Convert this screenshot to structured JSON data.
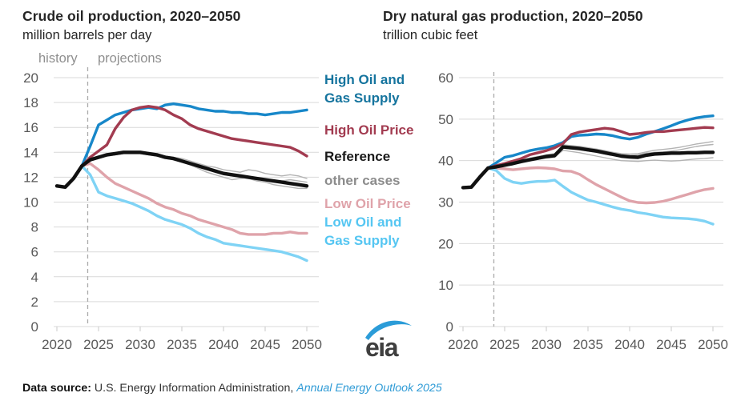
{
  "page": {
    "background": "#ffffff"
  },
  "left_chart": {
    "title": "Crude oil production, 2020–2050",
    "subtitle": "million barrels per day",
    "history_label": "history",
    "projections_label": "projections"
  },
  "right_chart": {
    "title": "Dry natural gas production, 2020–2050",
    "subtitle": "trillion cubic feet"
  },
  "legend": {
    "items": [
      {
        "label": "High Oil and Gas Supply",
        "color": "#15749e"
      },
      {
        "label": "High Oil Price",
        "color": "#a23b50"
      },
      {
        "label": "Reference",
        "color": "#1a1a1a"
      },
      {
        "label": "other cases",
        "color": "#8c8c8c"
      },
      {
        "label": "Low Oil Price",
        "color": "#dfa3aa"
      },
      {
        "label": "Low Oil and Gas Supply",
        "color": "#55c6f2"
      }
    ]
  },
  "logo": {
    "text": "eia",
    "swoosh_color": "#2b9cd8"
  },
  "footer": {
    "prefix": "Data source: ",
    "text": "U.S. Energy Information Administration, ",
    "link": "Annual Energy Outlook 2025"
  },
  "colors": {
    "grid": "#d9d9d9",
    "axis_text": "#595959",
    "divider": "#ababab"
  },
  "chart_data": [
    {
      "type": "line",
      "title": "Crude oil production, 2020–2050",
      "units": "million barrels per day",
      "xlim": [
        2020,
        2050
      ],
      "ylim": [
        0,
        20
      ],
      "xticks": [
        2020,
        2025,
        2030,
        2035,
        2040,
        2045,
        2050
      ],
      "yticks": [
        0,
        2,
        4,
        6,
        8,
        10,
        12,
        14,
        16,
        18,
        20
      ],
      "grid": true,
      "divider_year": 2023.7,
      "annotations": [
        "history",
        "projections"
      ],
      "series": [
        {
          "name": "other cases",
          "color": "#b3b3b3",
          "lw": 1.4,
          "start_year": 2023,
          "values": [
            12.9,
            13.4,
            13.6,
            13.8,
            13.9,
            14.0,
            14.0,
            14.0,
            13.9,
            13.8,
            13.7,
            13.6,
            13.5,
            13.3,
            13.1,
            12.9,
            12.8,
            12.6,
            12.5,
            12.4,
            12.6,
            12.5,
            12.3,
            12.2,
            12.1,
            12.2,
            12.1,
            11.9
          ]
        },
        {
          "name": "other cases",
          "color": "#b3b3b3",
          "lw": 1.4,
          "start_year": 2023,
          "values": [
            12.9,
            13.4,
            13.5,
            13.7,
            13.8,
            13.9,
            13.9,
            13.9,
            13.8,
            13.7,
            13.6,
            13.4,
            13.2,
            13.0,
            12.7,
            12.4,
            12.2,
            12.0,
            11.8,
            11.9,
            12.0,
            11.9,
            11.8,
            11.7,
            11.7,
            11.8,
            11.7,
            11.6
          ]
        },
        {
          "name": "other cases",
          "color": "#b3b3b3",
          "lw": 1.4,
          "start_year": 2023,
          "values": [
            12.9,
            13.3,
            13.5,
            13.7,
            13.8,
            13.9,
            13.9,
            13.9,
            13.8,
            13.7,
            13.5,
            13.4,
            13.2,
            13.0,
            12.8,
            12.6,
            12.4,
            12.2,
            12.1,
            12.0,
            11.9,
            11.7,
            11.6,
            11.4,
            11.3,
            11.2,
            11.1,
            11.1
          ]
        },
        {
          "name": "Low Oil Price",
          "color": "#dfa3aa",
          "lw": 3.4,
          "start_year": 2023,
          "values": [
            12.9,
            13.1,
            12.6,
            12.0,
            11.5,
            11.2,
            10.9,
            10.6,
            10.3,
            9.9,
            9.6,
            9.4,
            9.1,
            8.9,
            8.6,
            8.4,
            8.2,
            8.0,
            7.8,
            7.5,
            7.4,
            7.4,
            7.4,
            7.5,
            7.5,
            7.6,
            7.5,
            7.5
          ]
        },
        {
          "name": "Low Oil and Gas Supply",
          "color": "#7fd3f5",
          "lw": 3.4,
          "start_year": 2023,
          "values": [
            12.9,
            12.2,
            10.8,
            10.5,
            10.3,
            10.1,
            9.9,
            9.6,
            9.3,
            8.9,
            8.6,
            8.4,
            8.2,
            7.9,
            7.5,
            7.2,
            7.0,
            6.7,
            6.6,
            6.5,
            6.4,
            6.3,
            6.2,
            6.1,
            6.0,
            5.8,
            5.6,
            5.3
          ]
        },
        {
          "name": "High Oil and Gas Supply",
          "color": "#1787c9",
          "lw": 3.4,
          "start_year": 2023,
          "values": [
            12.9,
            14.5,
            16.2,
            16.6,
            17.0,
            17.2,
            17.4,
            17.5,
            17.6,
            17.5,
            17.8,
            17.9,
            17.8,
            17.7,
            17.5,
            17.4,
            17.3,
            17.3,
            17.2,
            17.2,
            17.1,
            17.1,
            17.0,
            17.1,
            17.2,
            17.2,
            17.3,
            17.4
          ]
        },
        {
          "name": "High Oil Price",
          "color": "#a23b50",
          "lw": 3.4,
          "start_year": 2023,
          "values": [
            12.9,
            13.6,
            14.1,
            14.6,
            15.9,
            16.8,
            17.4,
            17.6,
            17.7,
            17.6,
            17.4,
            17.0,
            16.7,
            16.2,
            15.9,
            15.7,
            15.5,
            15.3,
            15.1,
            15.0,
            14.9,
            14.8,
            14.7,
            14.6,
            14.5,
            14.4,
            14.1,
            13.7
          ]
        },
        {
          "name": "Reference",
          "color": "#111111",
          "lw": 4.4,
          "start_year": 2023,
          "values": [
            12.9,
            13.4,
            13.6,
            13.8,
            13.9,
            14.0,
            14.0,
            14.0,
            13.9,
            13.8,
            13.6,
            13.5,
            13.3,
            13.1,
            12.9,
            12.7,
            12.5,
            12.3,
            12.2,
            12.1,
            12.0,
            11.9,
            11.8,
            11.7,
            11.6,
            11.5,
            11.4,
            11.3
          ]
        },
        {
          "name": "history",
          "color": "#111111",
          "lw": 4.4,
          "start_year": 2020,
          "values": [
            11.3,
            11.2,
            11.9,
            12.9
          ]
        }
      ]
    },
    {
      "type": "line",
      "title": "Dry natural gas production, 2020–2050",
      "units": "trillion cubic feet",
      "xlim": [
        2020,
        2050
      ],
      "ylim": [
        0,
        60
      ],
      "xticks": [
        2020,
        2025,
        2030,
        2035,
        2040,
        2045,
        2050
      ],
      "yticks": [
        0,
        10,
        20,
        30,
        40,
        50,
        60
      ],
      "grid": true,
      "divider_year": 2023.7,
      "annotations": [],
      "series": [
        {
          "name": "other cases",
          "color": "#b3b3b3",
          "lw": 1.4,
          "start_year": 2023,
          "values": [
            38.2,
            38.6,
            39.1,
            39.6,
            40.1,
            40.6,
            41.0,
            41.4,
            41.7,
            43.8,
            43.6,
            43.4,
            43.1,
            42.8,
            42.4,
            42.0,
            41.7,
            41.6,
            41.7,
            42.1,
            42.5,
            42.7,
            42.9,
            43.2,
            43.6,
            44.0,
            44.3,
            44.6
          ]
        },
        {
          "name": "other cases",
          "color": "#b3b3b3",
          "lw": 1.4,
          "start_year": 2023,
          "values": [
            38.2,
            38.5,
            39.0,
            39.4,
            39.9,
            40.3,
            40.7,
            41.1,
            41.3,
            43.0,
            42.8,
            42.6,
            42.3,
            42.0,
            41.6,
            41.3,
            41.0,
            41.2,
            41.4,
            41.8,
            42.0,
            42.1,
            42.3,
            42.6,
            43.0,
            43.4,
            43.7,
            43.9
          ]
        },
        {
          "name": "other cases",
          "color": "#b3b3b3",
          "lw": 1.4,
          "start_year": 2023,
          "values": [
            38.2,
            38.4,
            38.8,
            39.1,
            39.5,
            39.9,
            40.3,
            40.6,
            40.8,
            42.5,
            42.2,
            41.9,
            41.5,
            41.1,
            40.7,
            40.3,
            40.0,
            39.9,
            39.8,
            40.0,
            40.1,
            40.0,
            39.9,
            40.0,
            40.2,
            40.4,
            40.5,
            40.7
          ]
        },
        {
          "name": "Low Oil Price",
          "color": "#dfa3aa",
          "lw": 3.4,
          "start_year": 2023,
          "values": [
            38.2,
            38.2,
            38.0,
            37.8,
            38.0,
            38.2,
            38.3,
            38.2,
            38.0,
            37.5,
            37.4,
            36.7,
            35.4,
            34.2,
            33.2,
            32.2,
            31.2,
            30.3,
            29.9,
            29.8,
            29.9,
            30.2,
            30.7,
            31.3,
            31.9,
            32.5,
            33.0,
            33.3
          ]
        },
        {
          "name": "Low Oil and Gas Supply",
          "color": "#7fd3f5",
          "lw": 3.4,
          "start_year": 2023,
          "values": [
            38.2,
            37.6,
            35.7,
            34.8,
            34.5,
            34.8,
            35.0,
            35.0,
            35.3,
            33.8,
            32.4,
            31.4,
            30.5,
            30.0,
            29.4,
            28.8,
            28.3,
            28.0,
            27.5,
            27.2,
            26.8,
            26.4,
            26.2,
            26.1,
            26.0,
            25.8,
            25.4,
            24.7
          ]
        },
        {
          "name": "High Oil and Gas Supply",
          "color": "#1787c9",
          "lw": 3.4,
          "start_year": 2023,
          "values": [
            38.2,
            39.5,
            40.8,
            41.2,
            41.8,
            42.4,
            42.8,
            43.1,
            43.6,
            44.4,
            45.8,
            46.1,
            46.2,
            46.4,
            46.3,
            46.0,
            45.5,
            45.2,
            45.6,
            46.4,
            47.0,
            47.7,
            48.4,
            49.2,
            49.8,
            50.3,
            50.6,
            50.8
          ]
        },
        {
          "name": "High Oil Price",
          "color": "#a23b50",
          "lw": 3.4,
          "start_year": 2023,
          "values": [
            38.2,
            38.8,
            39.3,
            39.9,
            40.5,
            41.4,
            41.9,
            42.4,
            43.1,
            44.1,
            46.3,
            46.9,
            47.2,
            47.5,
            47.8,
            47.6,
            47.0,
            46.3,
            46.5,
            46.8,
            47.0,
            47.0,
            47.2,
            47.4,
            47.6,
            47.8,
            48.0,
            47.9
          ]
        },
        {
          "name": "Reference",
          "color": "#111111",
          "lw": 4.4,
          "start_year": 2023,
          "values": [
            38.2,
            38.5,
            38.9,
            39.3,
            39.8,
            40.2,
            40.6,
            41.0,
            41.2,
            43.3,
            43.1,
            42.9,
            42.6,
            42.3,
            41.9,
            41.5,
            41.1,
            40.9,
            40.8,
            41.3,
            41.6,
            41.7,
            41.8,
            41.8,
            41.9,
            41.9,
            42.0,
            42.0
          ]
        },
        {
          "name": "history",
          "color": "#111111",
          "lw": 4.4,
          "start_year": 2020,
          "values": [
            33.5,
            33.6,
            36.0,
            38.2
          ]
        }
      ]
    }
  ]
}
